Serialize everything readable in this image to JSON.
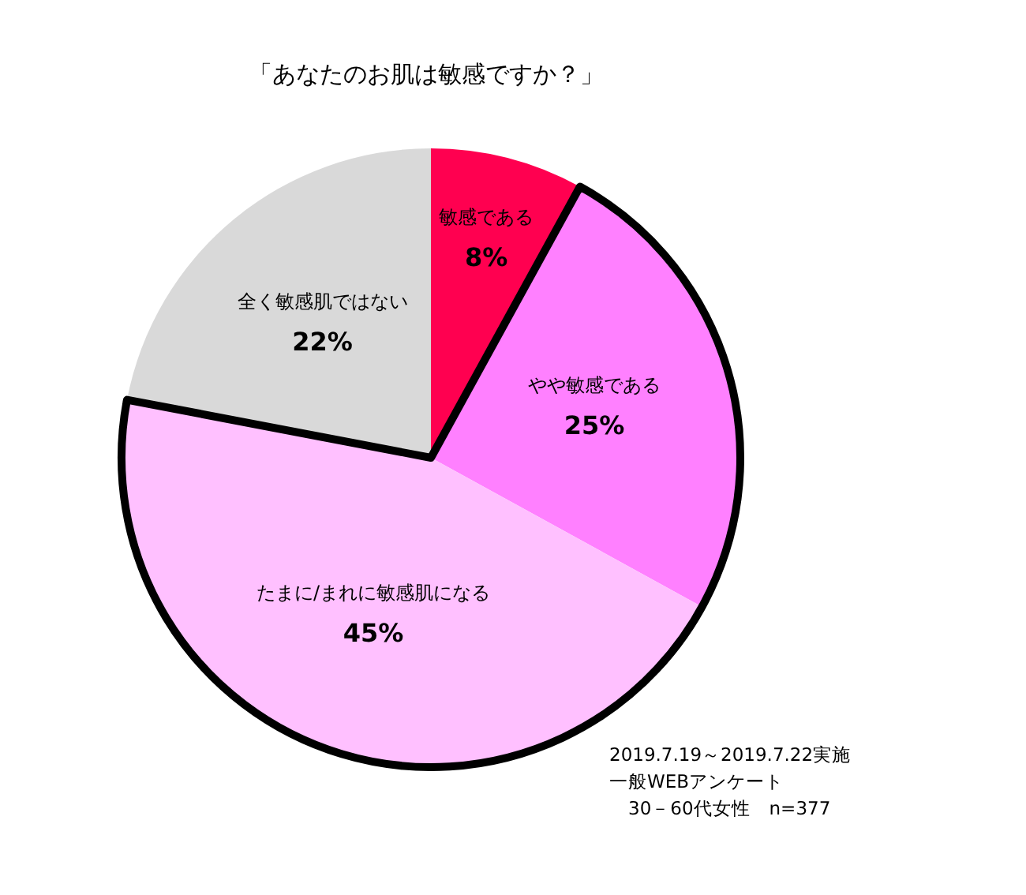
{
  "chart_data": {
    "type": "pie",
    "title": "「あなたのお肌は敏感ですか？」",
    "categories": [
      "敏感である",
      "やや敏感である",
      "たまに/まれに敏感肌になる",
      "全く敏感肌ではない"
    ],
    "values": [
      8,
      25,
      45,
      22
    ],
    "colors": [
      "#ff0050",
      "#ff80ff",
      "#ffc0ff",
      "#d9d9d9"
    ],
    "value_labels": [
      "8%",
      "25%",
      "45%",
      "22%"
    ],
    "legend": false,
    "annotations": [
      "2019.7.19～2019.7.22実施",
      "一般WEBアンケート",
      "　30－60代女性　n=377"
    ]
  }
}
